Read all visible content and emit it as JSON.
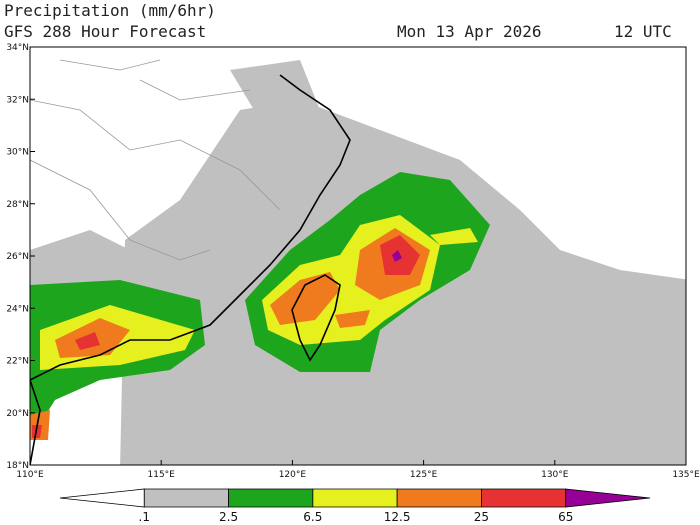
{
  "header": {
    "title": "Precipitation (mm/6hr)",
    "subtitle": "GFS 288 Hour Forecast",
    "date": "Mon 13 Apr 2026",
    "time": "12 UTC"
  },
  "map": {
    "lat_labels": [
      "18°N",
      "20°N",
      "22°N",
      "24°N",
      "26°N",
      "28°N",
      "30°N",
      "32°N",
      "34°N"
    ],
    "lon_labels": [
      "110°E",
      "115°E",
      "120°E",
      "125°E",
      "130°E",
      "135°E"
    ]
  },
  "colorbar": {
    "levels": [
      ".1",
      "2.5",
      "6.5",
      "12.5",
      "25",
      "65"
    ],
    "colors": [
      "#ffffff",
      "#c0c0c0",
      "#1ea51e",
      "#e6f01e",
      "#f07a1e",
      "#e63232",
      "#960096"
    ]
  }
}
